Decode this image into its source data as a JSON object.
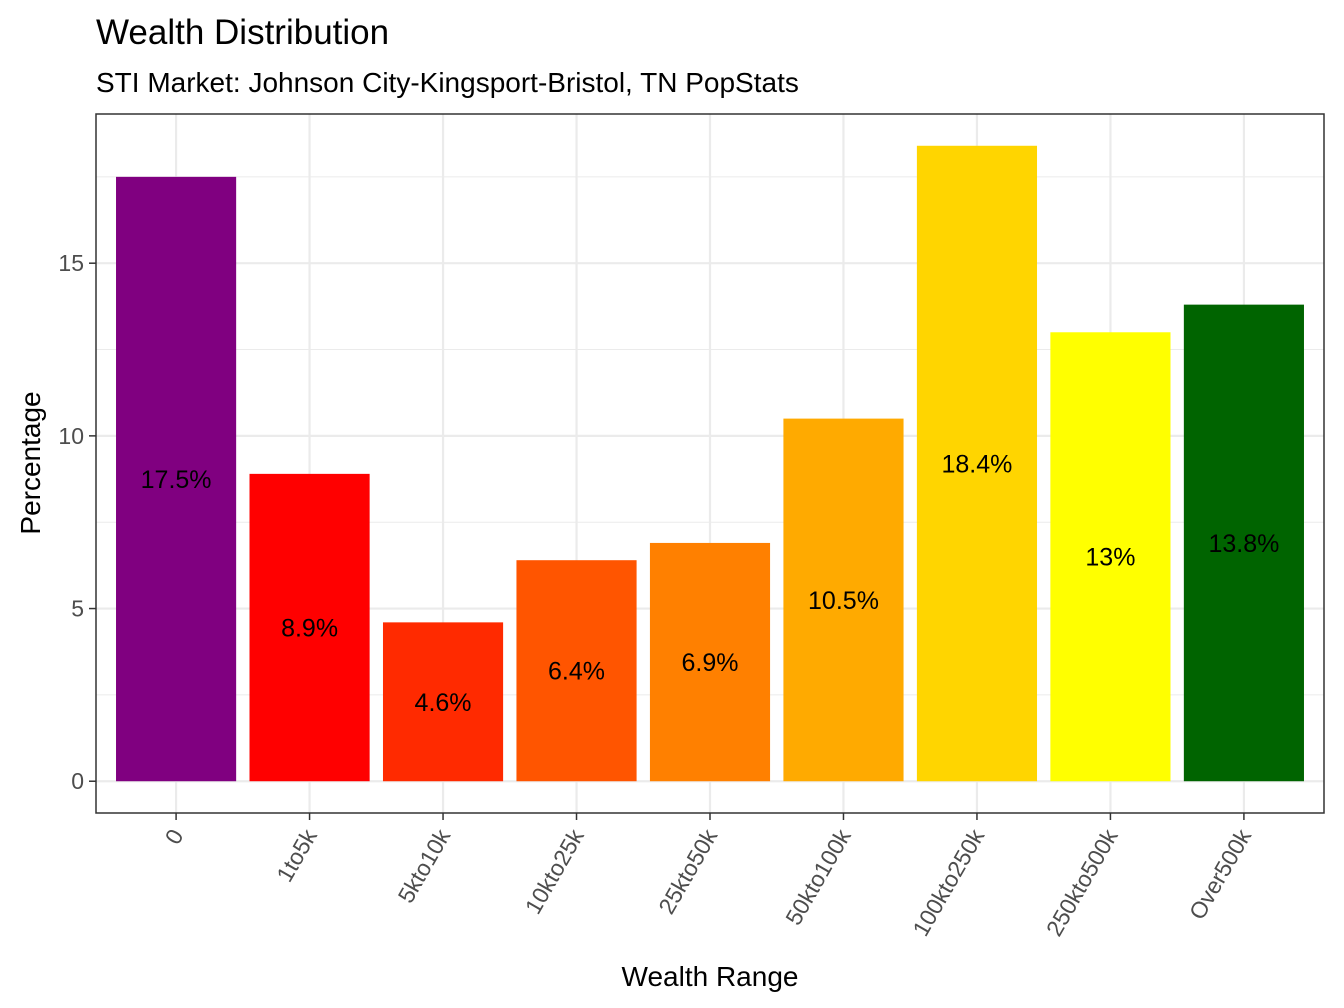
{
  "chart_data": {
    "type": "bar",
    "title": "Wealth Distribution",
    "subtitle": "STI Market: Johnson City-Kingsport-Bristol, TN PopStats",
    "xlabel": "Wealth Range",
    "ylabel": "Percentage",
    "categories": [
      "0",
      "1to5k",
      "5kto10k",
      "10kto25k",
      "25kto50k",
      "50kto100k",
      "100kto250k",
      "250kto500k",
      "Over500k"
    ],
    "values": [
      17.5,
      8.9,
      4.6,
      6.4,
      6.9,
      10.5,
      18.4,
      13,
      13.8
    ],
    "data_labels": [
      "17.5%",
      "8.9%",
      "4.6%",
      "6.4%",
      "6.9%",
      "10.5%",
      "18.4%",
      "13%",
      "13.8%"
    ],
    "colors": [
      "#800080",
      "#FF0000",
      "#FF2A00",
      "#FF5500",
      "#FF8000",
      "#FFAA00",
      "#FFD500",
      "#FFFF00",
      "#006400"
    ],
    "ylim": [
      -0.92,
      19.32
    ],
    "yticks": [
      0,
      5,
      10,
      15
    ],
    "ytick_labels": [
      "0",
      "5",
      "10",
      "15"
    ],
    "grid": true,
    "legend": "none"
  }
}
